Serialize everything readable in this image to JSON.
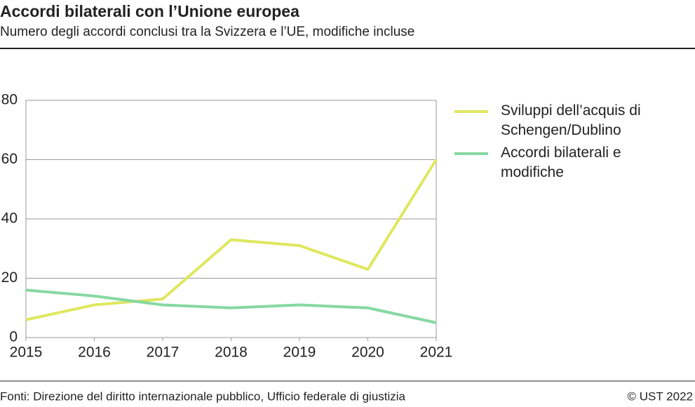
{
  "chart_data": {
    "type": "line",
    "title": "Accordi bilaterali con l’Unione europea",
    "subtitle": "Numero degli accordi conclusi tra la Svizzera e l’UE, modifiche incluse",
    "source": "Fonti: Direzione del diritto internazionale pubblico, Ufficio federale di giustizia",
    "copyright": "© UST 2022",
    "x": [
      2015,
      2016,
      2017,
      2018,
      2019,
      2020,
      2021
    ],
    "series": [
      {
        "name": "Sviluppi dell’acquis di Schengen/Dublino",
        "color": "#dfe75f",
        "values": [
          6,
          11,
          13,
          33,
          31,
          23,
          60
        ]
      },
      {
        "name": "Accordi bilaterali e modifiche",
        "color": "#86d8a2",
        "values": [
          16,
          14,
          11,
          10,
          11,
          10,
          5
        ]
      }
    ],
    "xlim": [
      2015,
      2021
    ],
    "xticks": [
      2015,
      2016,
      2017,
      2018,
      2019,
      2020,
      2021
    ],
    "ylim": [
      0,
      80
    ],
    "yticks": [
      0,
      20,
      40,
      60,
      80
    ],
    "grid": true
  }
}
